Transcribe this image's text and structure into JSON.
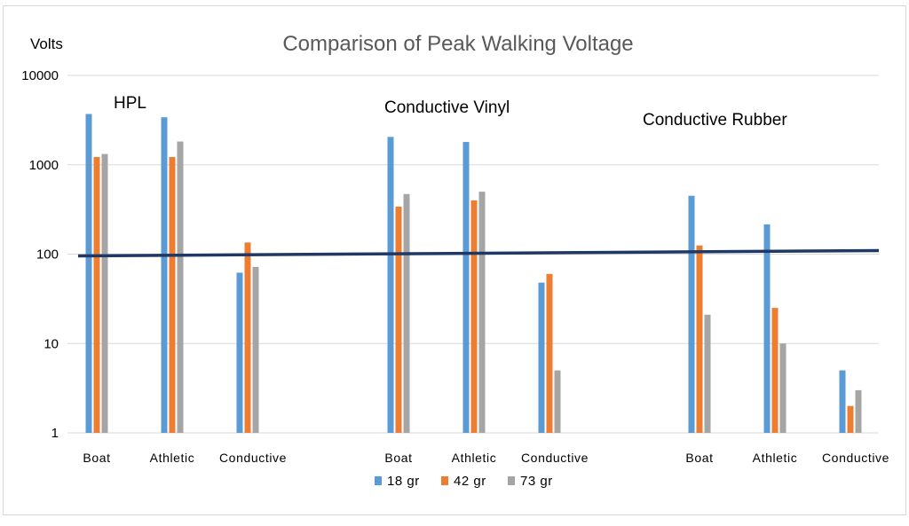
{
  "chart_data": {
    "type": "bar",
    "title": "Comparison of Peak Walking Voltage",
    "ylabel": "Volts",
    "xlabel": "",
    "yscale": "log",
    "ylim": [
      1,
      10000
    ],
    "yticks": [
      "1",
      "10",
      "100",
      "1000",
      "10000"
    ],
    "grid": true,
    "legend_position": "bottom",
    "groups": [
      "HPL",
      "Conductive Vinyl",
      "Conductive Rubber"
    ],
    "categories": [
      "Boat",
      "Athletic",
      "Conductive",
      "Boat",
      "Athletic",
      "Conductive",
      "Boat",
      "Athletic",
      "Conductive"
    ],
    "series": [
      {
        "name": "18 gr",
        "color": "#5b9bd5",
        "values": [
          3700,
          3400,
          62,
          2050,
          1800,
          48,
          450,
          215,
          5
        ]
      },
      {
        "name": "42 gr",
        "color": "#ed7d31",
        "values": [
          1220,
          1220,
          135,
          340,
          400,
          60,
          125,
          25,
          2
        ]
      },
      {
        "name": "73 gr",
        "color": "#a5a5a5",
        "values": [
          1320,
          1820,
          72,
          470,
          500,
          5,
          21,
          10,
          3
        ]
      }
    ],
    "reference_line": {
      "value": 100,
      "color": "#1f3864"
    }
  }
}
